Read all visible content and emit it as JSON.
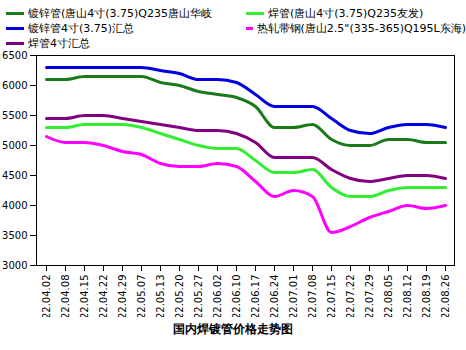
{
  "chart_data": {
    "type": "line",
    "title": "国内焊镀管价格走势图",
    "categories": [
      "22.04.02",
      "22.04.08",
      "22.04.15",
      "22.04.22",
      "22.04.29",
      "22.05.07",
      "22.05.13",
      "22.05.20",
      "22.05.27",
      "22.06.02",
      "22.06.10",
      "22.06.17",
      "22.06.24",
      "22.07.01",
      "22.07.08",
      "22.07.15",
      "22.07.22",
      "22.07.29",
      "22.08.05",
      "22.08.12",
      "22.08.19",
      "22.08.26"
    ],
    "series": [
      {
        "name": "镀锌管(唐山4寸(3.75)Q235唐山华岐",
        "color": "#1a7a1a",
        "values": [
          6100,
          6100,
          6150,
          6150,
          6150,
          6150,
          6050,
          6000,
          5900,
          5850,
          5800,
          5650,
          5300,
          5300,
          5350,
          5100,
          5000,
          5000,
          5100,
          5100,
          5050,
          5050
        ]
      },
      {
        "name": "镀锌管4寸(3.75)汇总",
        "color": "#0000e0",
        "values": [
          6300,
          6300,
          6300,
          6300,
          6300,
          6300,
          6250,
          6200,
          6100,
          6100,
          6050,
          5850,
          5650,
          5650,
          5650,
          5450,
          5250,
          5200,
          5300,
          5350,
          5350,
          5300
        ]
      },
      {
        "name": "焊管4寸汇总",
        "color": "#800080",
        "values": [
          5450,
          5450,
          5500,
          5500,
          5450,
          5400,
          5350,
          5300,
          5250,
          5250,
          5200,
          5050,
          4800,
          4800,
          4800,
          4600,
          4450,
          4400,
          4450,
          4500,
          4500,
          4450
        ]
      },
      {
        "name": "焊管(唐山4寸(3.75)Q235友发)",
        "color": "#33ee33",
        "values": [
          5300,
          5300,
          5350,
          5350,
          5350,
          5300,
          5200,
          5100,
          5000,
          4950,
          4950,
          4750,
          4550,
          4550,
          4600,
          4300,
          4150,
          4150,
          4250,
          4300,
          4300,
          4300
        ]
      },
      {
        "name": "热轧带钢(唐山2.5\"(335-365)Q195L东海)",
        "color": "#ff00ff",
        "values": [
          5150,
          5050,
          5050,
          5000,
          4900,
          4850,
          4700,
          4650,
          4650,
          4700,
          4650,
          4400,
          4150,
          4250,
          4150,
          3550,
          3650,
          3800,
          3900,
          4000,
          3950,
          4000
        ]
      }
    ],
    "ylim": [
      3000,
      6500
    ],
    "yticks": [
      3000,
      3500,
      4000,
      4500,
      5000,
      5500,
      6000,
      6500
    ],
    "grid": false,
    "legend": "top"
  }
}
